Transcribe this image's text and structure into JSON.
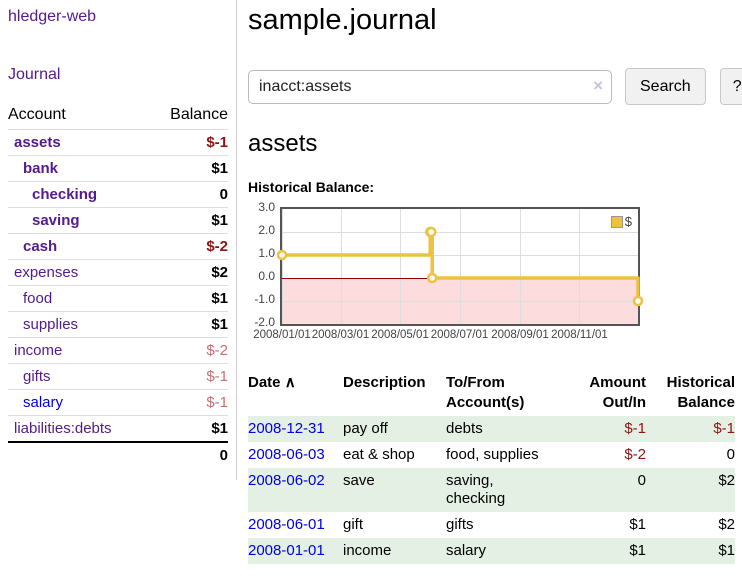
{
  "app": {
    "title": "hledger-web"
  },
  "nav": {
    "journal": "Journal"
  },
  "sidebar": {
    "columns": {
      "account": "Account",
      "balance": "Balance"
    },
    "accounts": [
      {
        "name": "assets",
        "balance": "$-1"
      },
      {
        "name": "bank",
        "balance": "$1"
      },
      {
        "name": "checking",
        "balance": "0"
      },
      {
        "name": "saving",
        "balance": "$1"
      },
      {
        "name": "cash",
        "balance": "$-2"
      },
      {
        "name": "expenses",
        "balance": "$2"
      },
      {
        "name": "food",
        "balance": "$1"
      },
      {
        "name": "supplies",
        "balance": "$1"
      },
      {
        "name": "income",
        "balance": "$-2"
      },
      {
        "name": "gifts",
        "balance": "$-1"
      },
      {
        "name": "salary",
        "balance": "$-1"
      },
      {
        "name": "liabilities:debts",
        "balance": "$1"
      }
    ],
    "total": "0"
  },
  "main": {
    "title": "sample.journal",
    "search": {
      "value": "inacct:assets",
      "clear_icon": "×",
      "button": "Search",
      "help": "?"
    },
    "account_heading": "assets",
    "chart_label": "Historical Balance:"
  },
  "chart_data": {
    "type": "line",
    "step": true,
    "title": "Historical Balance:",
    "series": [
      {
        "name": "$",
        "color": "#EDC240",
        "points": [
          {
            "x": "2008-01-01",
            "y": 1
          },
          {
            "x": "2008-06-01",
            "y": 2
          },
          {
            "x": "2008-06-02",
            "y": 2
          },
          {
            "x": "2008-06-03",
            "y": 0
          },
          {
            "x": "2008-12-31",
            "y": -1
          }
        ]
      }
    ],
    "xlim": [
      "2008-01-01",
      "2008-12-31"
    ],
    "ylim": [
      -2,
      3
    ],
    "x_ticks": [
      {
        "pos": "2008-01-01",
        "label": "2008/01/01"
      },
      {
        "pos": "2008-03-01",
        "label": "2008/03/01"
      },
      {
        "pos": "2008-05-01",
        "label": "2008/05/01"
      },
      {
        "pos": "2008-07-01",
        "label": "2008/07/01"
      },
      {
        "pos": "2008-09-01",
        "label": "2008/09/01"
      },
      {
        "pos": "2008-11-01",
        "label": "2008/11/01"
      }
    ],
    "y_ticks": [
      {
        "pos": 3,
        "label": "3.0"
      },
      {
        "pos": 2,
        "label": "2.0"
      },
      {
        "pos": 1,
        "label": "1.0"
      },
      {
        "pos": 0,
        "label": "0.0"
      },
      {
        "pos": -1,
        "label": "-1.0"
      },
      {
        "pos": -2,
        "label": "-2.0"
      }
    ],
    "grid": true,
    "legend_position": "top-right",
    "negative_region_color": "#fcdcdc",
    "zero_line_color": "#8b0000"
  },
  "register": {
    "headers": {
      "date": "Date",
      "description": "Description",
      "accounts": "To/From Account(s)",
      "amount": "Amount Out/In",
      "balance": "Historical Balance"
    },
    "sort_indicator": "∧",
    "rows": [
      {
        "date": "2008-12-31",
        "description": "pay off",
        "accounts": "debts",
        "amount": "$-1",
        "balance": "$-1"
      },
      {
        "date": "2008-06-03",
        "description": "eat & shop",
        "accounts": "food, supplies",
        "amount": "$-2",
        "balance": "0"
      },
      {
        "date": "2008-06-02",
        "description": "save",
        "accounts": "saving, checking",
        "amount": "0",
        "balance": "$2"
      },
      {
        "date": "2008-06-01",
        "description": "gift",
        "accounts": "gifts",
        "amount": "$1",
        "balance": "$2"
      },
      {
        "date": "2008-01-01",
        "description": "income",
        "accounts": "salary",
        "amount": "$1",
        "balance": "$1"
      }
    ]
  },
  "colors": {
    "link_purple": "#551a8b",
    "link_blue": "#0000dd",
    "negative_strong": "#8e1414",
    "negative_muted": "#c76f6f",
    "row_stripe_green": "#e3f0e3",
    "chart_line": "#EDC240",
    "chart_negative_region": "#fcdcdc",
    "chart_zero_line": "#8b0000"
  }
}
